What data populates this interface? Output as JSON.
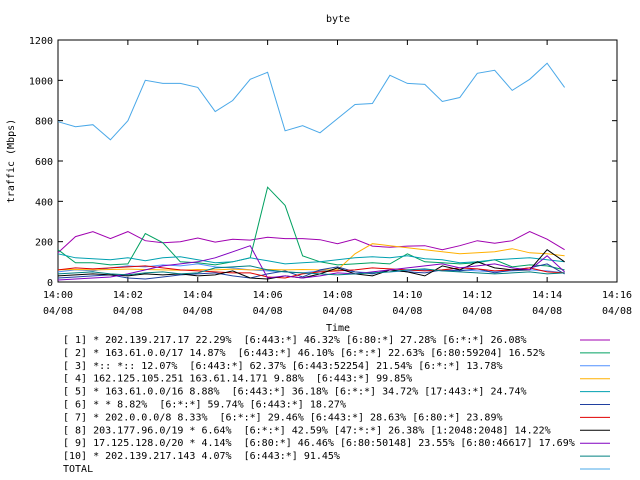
{
  "chart_data": {
    "type": "line",
    "title": "byte",
    "xlabel": "Time",
    "ylabel": "traffic (Mbps)",
    "ylim": [
      0,
      1200
    ],
    "yticks": [
      0,
      200,
      400,
      600,
      800,
      1000,
      1200
    ],
    "xlim": [
      "14:00",
      "14:16"
    ],
    "xtick_values": [
      0,
      2,
      4,
      6,
      8,
      10,
      12,
      14,
      16
    ],
    "xticks": [
      {
        "time": "14:00",
        "date": "04/08"
      },
      {
        "time": "14:02",
        "date": "04/08"
      },
      {
        "time": "14:04",
        "date": "04/08"
      },
      {
        "time": "14:06",
        "date": "04/08"
      },
      {
        "time": "14:08",
        "date": "04/08"
      },
      {
        "time": "14:10",
        "date": "04/08"
      },
      {
        "time": "14:12",
        "date": "04/08"
      },
      {
        "time": "14:14",
        "date": "04/08"
      },
      {
        "time": "14:16",
        "date": "04/08"
      }
    ],
    "x": [
      "14:00",
      "14:00:30",
      "14:01",
      "14:01:30",
      "14:02",
      "14:02:30",
      "14:03",
      "14:03:30",
      "14:04",
      "14:04:30",
      "14:05",
      "14:05:30",
      "14:06",
      "14:06:30",
      "14:07",
      "14:07:30",
      "14:08",
      "14:08:30",
      "14:09",
      "14:09:30",
      "14:10",
      "14:10:30",
      "14:11",
      "14:11:30",
      "14:12",
      "14:12:30",
      "14:13",
      "14:13:30",
      "14:14",
      "14:14:30"
    ],
    "legend_position": "bottom",
    "grid": false,
    "series": [
      {
        "name": "[ 1] * 202.139.217.17 22.29%  [6:443:*] 46.32% [6:80:*] 27.28% [6:*:*] 26.08%",
        "color": "#a000b0",
        "values": [
          145,
          225,
          250,
          215,
          250,
          205,
          195,
          200,
          218,
          198,
          212,
          208,
          222,
          215,
          215,
          210,
          190,
          212,
          178,
          172,
          178,
          180,
          160,
          180,
          205,
          192,
          205,
          250,
          212,
          160
        ]
      },
      {
        "name": "[ 2] * 163.61.0.0/17 14.87%  [6:443:*] 46.10% [6:*:*] 22.63% [6:80:59204] 16.52%",
        "color": "#00a060",
        "values": [
          160,
          95,
          95,
          85,
          90,
          240,
          195,
          100,
          95,
          85,
          100,
          120,
          470,
          380,
          130,
          100,
          85,
          90,
          95,
          90,
          140,
          100,
          95,
          90,
          95,
          110,
          75,
          85,
          80,
          60
        ]
      },
      {
        "name": "[ 3] *:: *:: 12.07%  [6:443:*] 62.37% [6:443:52254] 21.54% [6:*:*] 13.78%",
        "color": "#5090ff",
        "values": [
          50,
          60,
          55,
          70,
          80,
          75,
          85,
          80,
          90,
          75,
          70,
          60,
          55,
          50,
          45,
          55,
          60,
          50,
          45,
          50,
          55,
          60,
          55,
          60,
          55,
          50,
          55,
          60,
          55,
          45
        ]
      },
      {
        "name": "[ 4] 162.125.105.251 163.61.14.171 9.88%  [6:443:*] 99.85%",
        "color": "#ffb000",
        "values": [
          60,
          62,
          60,
          62,
          64,
          62,
          60,
          58,
          62,
          60,
          64,
          60,
          62,
          60,
          62,
          60,
          60,
          140,
          190,
          180,
          170,
          160,
          150,
          140,
          145,
          150,
          165,
          145,
          140,
          130
        ]
      },
      {
        "name": "[ 5] * 163.61.0.0/16 8.88%  [6:443:*] 36.18% [6:*:*] 34.72% [17:443:*] 24.74%",
        "color": "#00a0b0",
        "values": [
          140,
          120,
          115,
          110,
          120,
          105,
          120,
          125,
          110,
          95,
          100,
          120,
          105,
          90,
          95,
          100,
          110,
          120,
          125,
          120,
          130,
          115,
          110,
          95,
          100,
          110,
          115,
          120,
          110,
          100
        ]
      },
      {
        "name": "[ 6] * * 8.82%  [6:*:*] 59.74% [6:443:*] 18.27%",
        "color": "#2040a0",
        "values": [
          20,
          25,
          30,
          35,
          20,
          15,
          25,
          35,
          40,
          45,
          30,
          20,
          40,
          55,
          25,
          60,
          75,
          50,
          40,
          60,
          50,
          45,
          60,
          55,
          65,
          45,
          60,
          70,
          90,
          40
        ]
      },
      {
        "name": "[ 7] * 202.0.0.0/8 8.33%  [6:*:*] 29.46% [6:443:*] 28.63% [6:80:*] 23.89%",
        "color": "#e00000",
        "values": [
          60,
          70,
          65,
          70,
          75,
          80,
          70,
          60,
          55,
          50,
          45,
          45,
          25,
          20,
          40,
          50,
          55,
          60,
          70,
          65,
          60,
          55,
          60,
          70,
          65,
          55,
          60,
          70,
          50,
          45
        ]
      },
      {
        "name": "[ 8] 203.177.96.0/19 * 6.64%  [6:*:*] 42.59% [47:*:*] 26.38% [1:2048:2048] 14.22%",
        "color": "#000000",
        "values": [
          30,
          35,
          40,
          35,
          30,
          40,
          35,
          40,
          30,
          35,
          55,
          20,
          15,
          30,
          20,
          40,
          70,
          40,
          30,
          60,
          50,
          30,
          80,
          60,
          100,
          70,
          60,
          60,
          160,
          100
        ]
      },
      {
        "name": "[ 9] 17.125.128.0/20 * 4.14%  [6:80:*] 46.46% [6:80:50148] 23.55% [6:80:46617] 17.69%",
        "color": "#8000c0",
        "values": [
          10,
          15,
          20,
          25,
          40,
          60,
          80,
          90,
          100,
          120,
          150,
          180,
          20,
          30,
          20,
          30,
          45,
          40,
          50,
          60,
          70,
          80,
          90,
          70,
          80,
          90,
          70,
          60,
          130,
          50
        ]
      },
      {
        "name": "[10] * 202.139.217.143 4.07%  [6:443:*] 91.45%",
        "color": "#008080",
        "values": [
          40,
          45,
          50,
          40,
          35,
          45,
          50,
          40,
          45,
          70,
          75,
          80,
          60,
          50,
          45,
          40,
          35,
          40,
          45,
          50,
          60,
          65,
          55,
          50,
          45,
          40,
          45,
          50,
          40,
          45
        ]
      },
      {
        "name": "TOTAL",
        "color": "#4aa8e8",
        "values": [
          795,
          770,
          780,
          705,
          800,
          1000,
          985,
          985,
          965,
          845,
          900,
          1005,
          1040,
          750,
          775,
          740,
          810,
          880,
          885,
          1025,
          985,
          980,
          895,
          915,
          1035,
          1050,
          950,
          1005,
          1085,
          965
        ]
      }
    ]
  }
}
